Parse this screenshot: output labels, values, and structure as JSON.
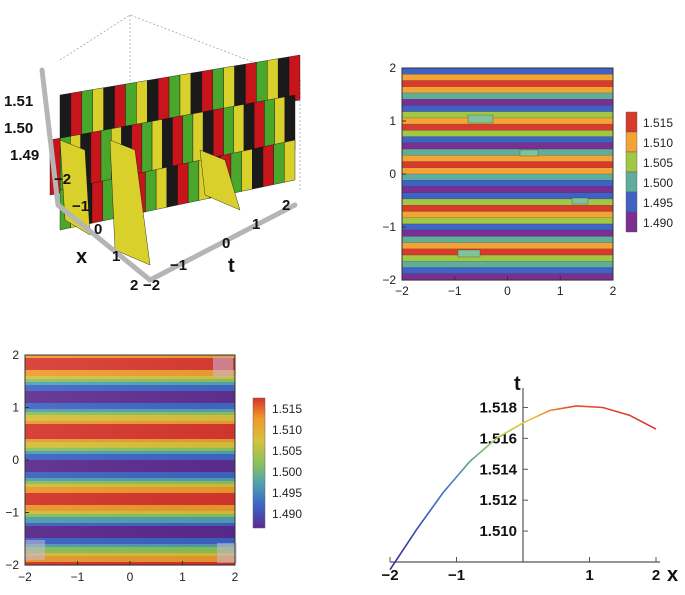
{
  "colors": {
    "ramp": [
      "#5b2a8f",
      "#3d63c6",
      "#4fa0b2",
      "#8cc25a",
      "#d6c23a",
      "#f09a2c",
      "#d8342a"
    ],
    "contour_levels": [
      "#7a2f91",
      "#3f62c4",
      "#5fae9c",
      "#a2c843",
      "#f2a437",
      "#d83a2c"
    ],
    "stripes_3d": [
      "#1a1a1a",
      "#c8151b",
      "#49a82c",
      "#d9d02b"
    ]
  },
  "chart_data": [
    {
      "type": "surface3d",
      "axes": {
        "x": {
          "label": "x",
          "ticks": [
            "−2",
            "−1",
            "0",
            "1",
            "2"
          ]
        },
        "t": {
          "label": "t",
          "ticks": [
            "−2",
            "−1",
            "0",
            "1",
            "2"
          ]
        },
        "z": {
          "label": "",
          "ticks": [
            "1.49",
            "1.50",
            "1.51"
          ]
        }
      }
    },
    {
      "type": "contour",
      "x_ticks": [
        "−2",
        "−1",
        "0",
        "1",
        "2"
      ],
      "y_ticks": [
        "−2",
        "−1",
        "0",
        "1",
        "2"
      ],
      "xlim": [
        -2,
        2
      ],
      "ylim": [
        -2,
        2
      ],
      "legend": {
        "labels": [
          "1.515",
          "1.510",
          "1.505",
          "1.500",
          "1.495",
          "1.490"
        ]
      }
    },
    {
      "type": "heatmap",
      "x_ticks": [
        "−2",
        "−1",
        "0",
        "1",
        "2"
      ],
      "y_ticks": [
        "−2",
        "−1",
        "0",
        "1",
        "2"
      ],
      "xlim": [
        -2,
        2
      ],
      "ylim": [
        -2,
        2
      ],
      "legend": {
        "labels": [
          "1.515",
          "1.510",
          "1.505",
          "1.500",
          "1.495",
          "1.490"
        ]
      }
    },
    {
      "type": "line",
      "xlabel": "x",
      "ylabel": "t",
      "x_ticks": [
        "−2",
        "−1",
        "1",
        "2"
      ],
      "y_ticks": [
        "1.510",
        "1.512",
        "1.514",
        "1.516",
        "1.518"
      ],
      "xlim": [
        -2,
        2
      ],
      "ylim": [
        1.508,
        1.519
      ],
      "series": [
        {
          "x": [
            -2,
            -1.6,
            -1.2,
            -0.8,
            -0.4,
            0,
            0.4,
            0.8,
            1.2,
            1.6,
            2
          ],
          "y": [
            1.5075,
            1.5101,
            1.5125,
            1.5145,
            1.516,
            1.517,
            1.5178,
            1.5181,
            1.518,
            1.5175,
            1.5166
          ]
        }
      ]
    }
  ]
}
